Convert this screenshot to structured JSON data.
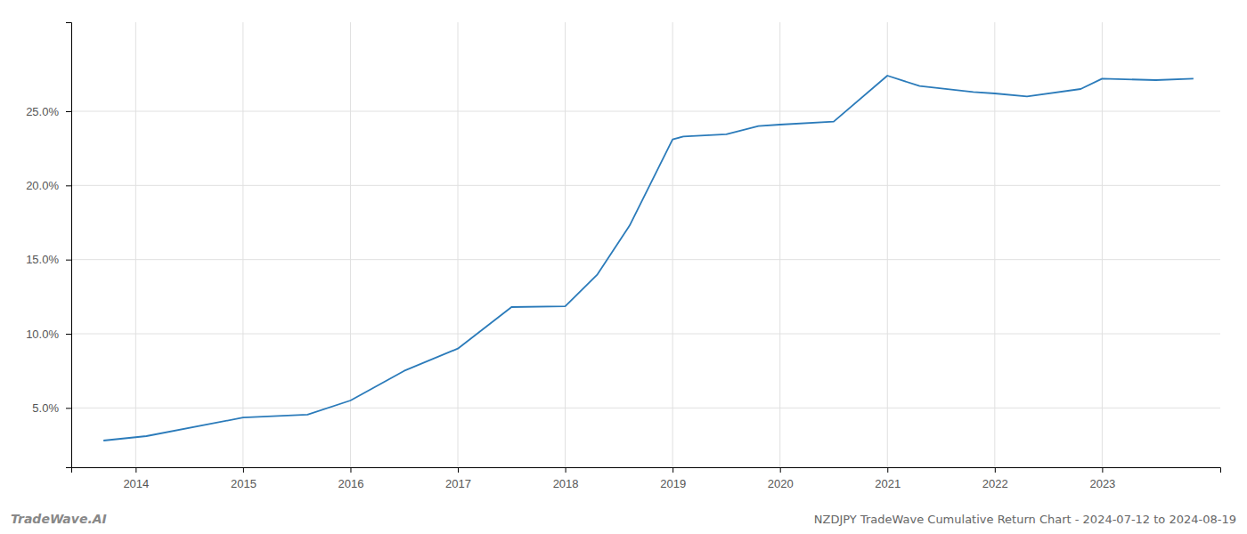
{
  "chart_data": {
    "type": "line",
    "title": "NZDJPY TradeWave Cumulative Return Chart - 2024-07-12 to 2024-08-19",
    "annotations": [
      "TradeWave.AI"
    ],
    "x": [
      2013.7,
      2014.1,
      2015.0,
      2015.6,
      2016.0,
      2016.5,
      2017.0,
      2017.5,
      2018.0,
      2018.3,
      2018.6,
      2019.0,
      2019.1,
      2019.5,
      2019.8,
      2020.0,
      2020.5,
      2021.0,
      2021.3,
      2021.8,
      2022.0,
      2022.3,
      2022.8,
      2023.0,
      2023.5,
      2023.85
    ],
    "values": [
      2.8,
      3.1,
      4.35,
      4.55,
      5.5,
      7.5,
      9.0,
      11.8,
      11.85,
      14.0,
      17.3,
      23.1,
      23.3,
      23.45,
      24.0,
      24.1,
      24.3,
      27.4,
      26.7,
      26.3,
      26.2,
      26.0,
      26.5,
      27.2,
      27.1,
      27.2
    ],
    "color": "#2b7bba",
    "xlim": [
      2013.4,
      2024.1
    ],
    "ylim": [
      1.0,
      31.0
    ],
    "xticks": [
      2014,
      2015,
      2016,
      2017,
      2018,
      2019,
      2020,
      2021,
      2022,
      2023
    ],
    "yticks": [
      {
        "value": 5.0,
        "label": "5.0%"
      },
      {
        "value": 10.0,
        "label": "10.0%"
      },
      {
        "value": 15.0,
        "label": "15.0%"
      },
      {
        "value": 20.0,
        "label": "20.0%"
      },
      {
        "value": 25.0,
        "label": "25.0%"
      }
    ],
    "grid": true
  }
}
